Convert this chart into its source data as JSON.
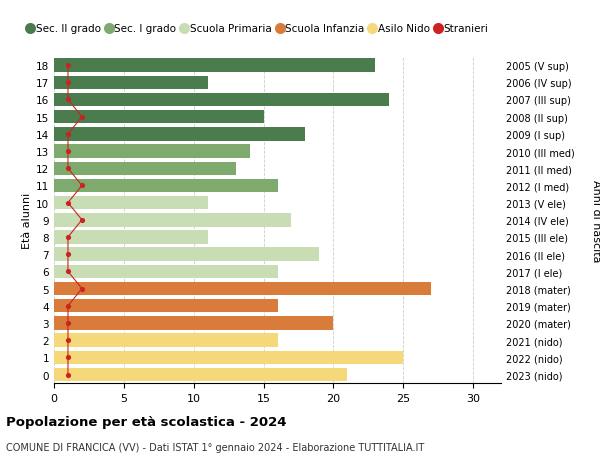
{
  "ages": [
    18,
    17,
    16,
    15,
    14,
    13,
    12,
    11,
    10,
    9,
    8,
    7,
    6,
    5,
    4,
    3,
    2,
    1,
    0
  ],
  "right_labels": [
    "2005 (V sup)",
    "2006 (IV sup)",
    "2007 (III sup)",
    "2008 (II sup)",
    "2009 (I sup)",
    "2010 (III med)",
    "2011 (II med)",
    "2012 (I med)",
    "2013 (V ele)",
    "2014 (IV ele)",
    "2015 (III ele)",
    "2016 (II ele)",
    "2017 (I ele)",
    "2018 (mater)",
    "2019 (mater)",
    "2020 (mater)",
    "2021 (nido)",
    "2022 (nido)",
    "2023 (nido)"
  ],
  "bar_values": [
    23,
    11,
    24,
    15,
    18,
    14,
    13,
    16,
    11,
    17,
    11,
    19,
    16,
    27,
    16,
    20,
    16,
    25,
    21
  ],
  "bar_colors": [
    "#4a7c4e",
    "#4a7c4e",
    "#4a7c4e",
    "#4a7c4e",
    "#4a7c4e",
    "#7faa6e",
    "#7faa6e",
    "#7faa6e",
    "#c8ddb4",
    "#c8ddb4",
    "#c8ddb4",
    "#c8ddb4",
    "#c8ddb4",
    "#d97b3a",
    "#d97b3a",
    "#d97b3a",
    "#f5d87a",
    "#f5d87a",
    "#f5d87a"
  ],
  "stranieri_values": [
    1,
    1,
    1,
    2,
    1,
    1,
    1,
    2,
    1,
    2,
    1,
    1,
    1,
    2,
    1,
    1,
    1,
    1,
    1
  ],
  "legend_labels": [
    "Sec. II grado",
    "Sec. I grado",
    "Scuola Primaria",
    "Scuola Infanzia",
    "Asilo Nido",
    "Stranieri"
  ],
  "legend_colors": [
    "#4a7c4e",
    "#7faa6e",
    "#c8ddb4",
    "#d97b3a",
    "#f5d87a",
    "#cc2222"
  ],
  "title": "Popolazione per età scolastica - 2024",
  "subtitle": "COMUNE DI FRANCICA (VV) - Dati ISTAT 1° gennaio 2024 - Elaborazione TUTTITALIA.IT",
  "ylabel_left": "Età alunni",
  "ylabel_right": "Anni di nascita",
  "xlim": [
    0,
    32
  ],
  "background_color": "#ffffff",
  "grid_color": "#cccccc",
  "bar_height": 0.78
}
